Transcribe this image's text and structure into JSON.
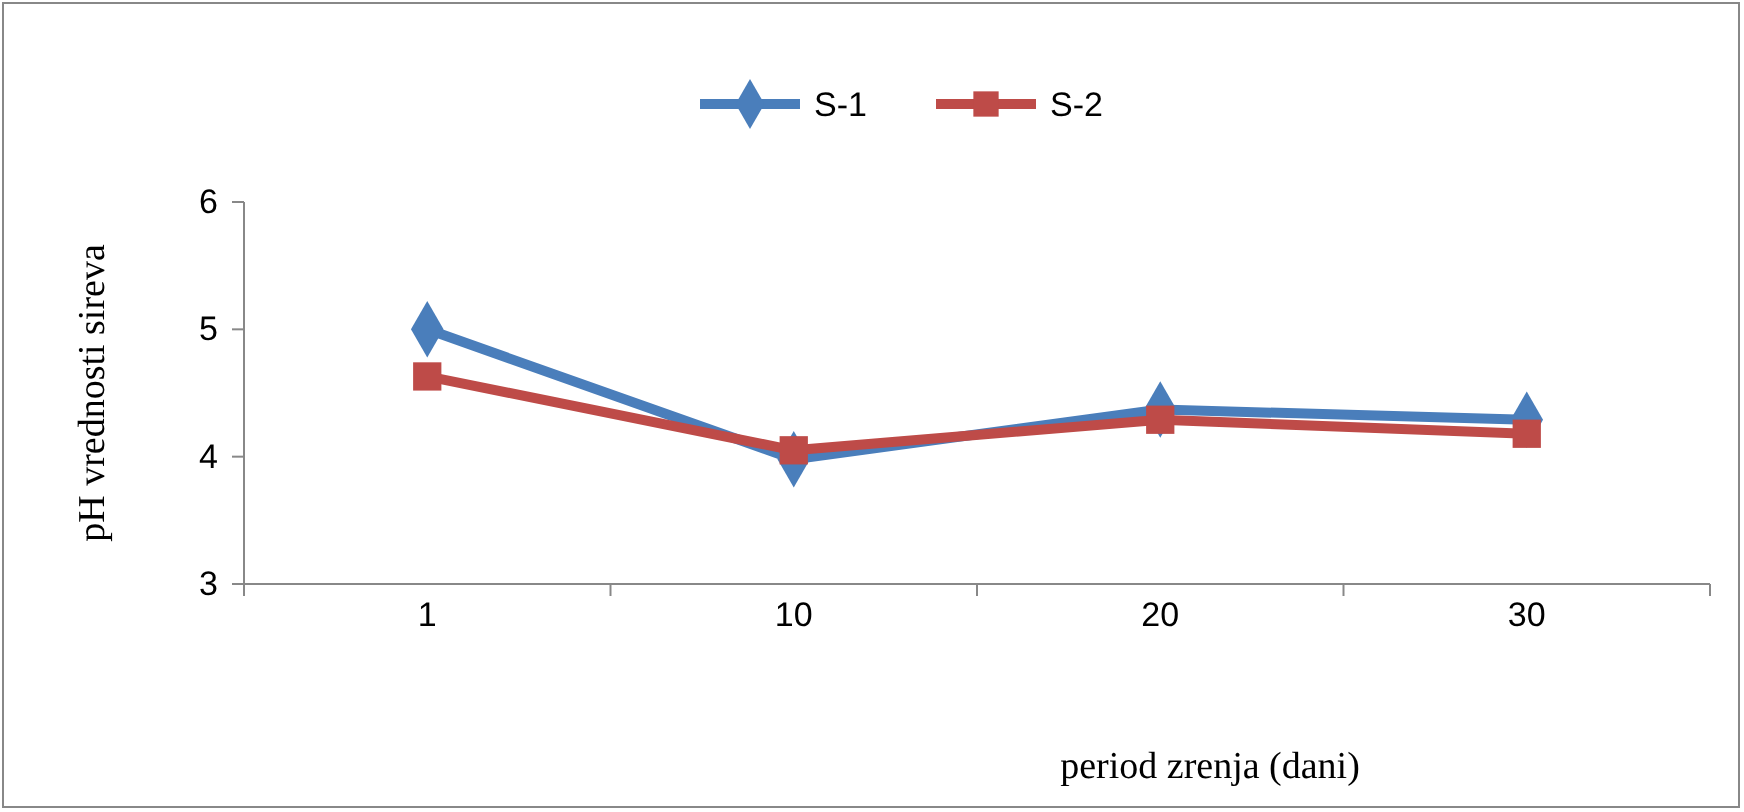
{
  "chart_data": {
    "type": "line",
    "xlabel": "period zrenja  (dani)",
    "ylabel": "pH vrednosti sireva",
    "categories": [
      "1",
      "10",
      "20",
      "30"
    ],
    "ylim": [
      3,
      6
    ],
    "yticks": [
      3,
      4,
      5,
      6
    ],
    "grid": false,
    "legend": "top",
    "series": [
      {
        "name": "S-1",
        "color": "#4a7ebb",
        "marker": "diamond",
        "values": [
          5.0,
          3.98,
          4.37,
          4.29
        ]
      },
      {
        "name": "S-2",
        "color": "#be4b48",
        "marker": "square",
        "values": [
          4.63,
          4.05,
          4.29,
          4.18
        ]
      }
    ]
  }
}
